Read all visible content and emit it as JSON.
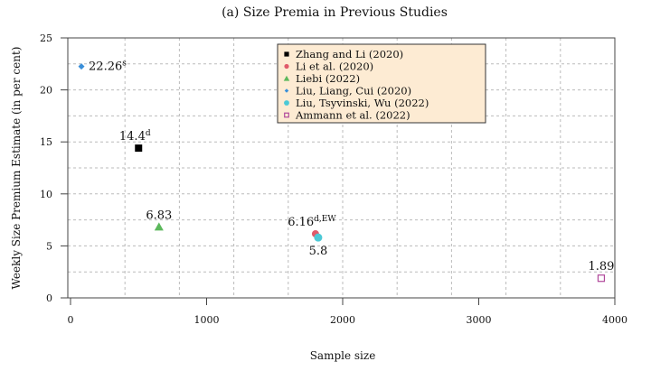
{
  "chart_data": {
    "type": "scatter",
    "title": "(a) Size Premia in Previous Studies",
    "xlabel": "Sample size",
    "ylabel": "Weekly Size Premium Estimate (in per cent)",
    "xlim": [
      0,
      4000
    ],
    "ylim": [
      0,
      25
    ],
    "xticks": [
      0,
      1000,
      2000,
      3000,
      4000
    ],
    "yticks": [
      0,
      5,
      10,
      15,
      20,
      25
    ],
    "grid": true,
    "legend_position": "top-center",
    "series": [
      {
        "name": "Zhang and Li (2020)",
        "marker": "square",
        "color": "#000000",
        "x": 500,
        "y": 14.4,
        "label": "14.4",
        "sup": "d",
        "label_pos": "above"
      },
      {
        "name": "Li et al. (2020)",
        "marker": "circle",
        "color": "#e05a6a",
        "x": 1800,
        "y": 6.16,
        "label": "6.16",
        "sup": "d,EW",
        "label_pos": "above"
      },
      {
        "name": "Liebi (2022)",
        "marker": "triangle",
        "color": "#5cb85c",
        "x": 650,
        "y": 6.83,
        "label": "6.83",
        "sup": "",
        "label_pos": "above"
      },
      {
        "name": "Liu, Liang, Cui (2020)",
        "marker": "diamond",
        "color": "#3a8fd9",
        "x": 80,
        "y": 22.26,
        "label": "22.26",
        "sup": "s",
        "label_pos": "right"
      },
      {
        "name": "Liu, Tsyvinski, Wu (2022)",
        "marker": "circle-big",
        "color": "#4cc9d6",
        "x": 1820,
        "y": 5.8,
        "label": "5.8",
        "sup": "",
        "label_pos": "below"
      },
      {
        "name": "Ammann et al. (2022)",
        "marker": "open-square",
        "color": "#b0479a",
        "x": 3900,
        "y": 1.89,
        "label": "1.89",
        "sup": "",
        "label_pos": "above"
      }
    ]
  }
}
